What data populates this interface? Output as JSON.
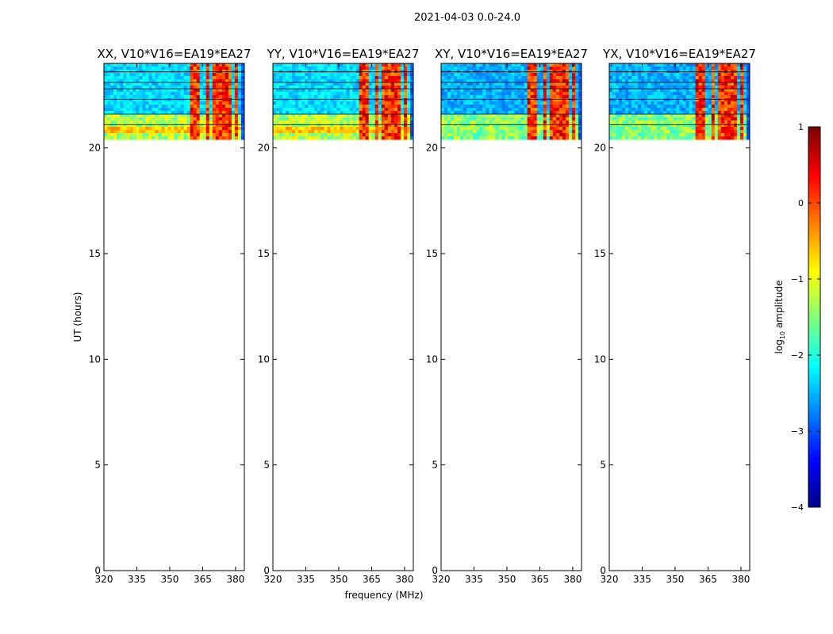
{
  "figure_title": "2021-04-03 0.0-24.0",
  "chart_data": {
    "type": "heatmap",
    "title": "2021-04-03 0.0-24.0",
    "xlabel": "frequency (MHz)",
    "ylabel": "UT (hours)",
    "xlim": [
      320,
      384
    ],
    "ylim": [
      0,
      24
    ],
    "xticks": [
      320,
      335,
      350,
      365,
      380
    ],
    "yticks": [
      0,
      5,
      10,
      15,
      20
    ],
    "data_time_range_hours": [
      20.4,
      24.0
    ],
    "panels": [
      {
        "title": "XX, V10*V16=EA19*EA27",
        "pol": "XX",
        "show_ylabel": true,
        "show_xlabel": false
      },
      {
        "title": "YY, V10*V16=EA19*EA27",
        "pol": "YY",
        "show_ylabel": false,
        "show_xlabel": true
      },
      {
        "title": "XY, V10*V16=EA19*EA27",
        "pol": "XY",
        "show_ylabel": false,
        "show_xlabel": false
      },
      {
        "title": "YX, V10*V16=EA19*EA27",
        "pol": "YX",
        "show_ylabel": false,
        "show_xlabel": false
      }
    ],
    "colorbar": {
      "label": "log10 amplitude",
      "label_main": "log",
      "label_sub": "10",
      "label_rest": " amplitude",
      "range": [
        -4,
        1
      ],
      "ticks": [
        1,
        0,
        -1,
        -2,
        -3,
        -4
      ],
      "tick_labels": [
        "1",
        "0",
        "−1",
        "−2",
        "−3",
        "−4"
      ],
      "colormap": "jet"
    },
    "rfi_bands_mhz": [
      [
        360,
        363
      ],
      [
        366,
        368
      ],
      [
        370,
        372
      ],
      [
        373,
        375
      ],
      [
        376,
        378
      ],
      [
        379,
        381
      ]
    ],
    "flagged_times_hours": [
      21.1,
      21.6,
      22.3,
      22.8,
      23.1,
      23.6
    ]
  }
}
